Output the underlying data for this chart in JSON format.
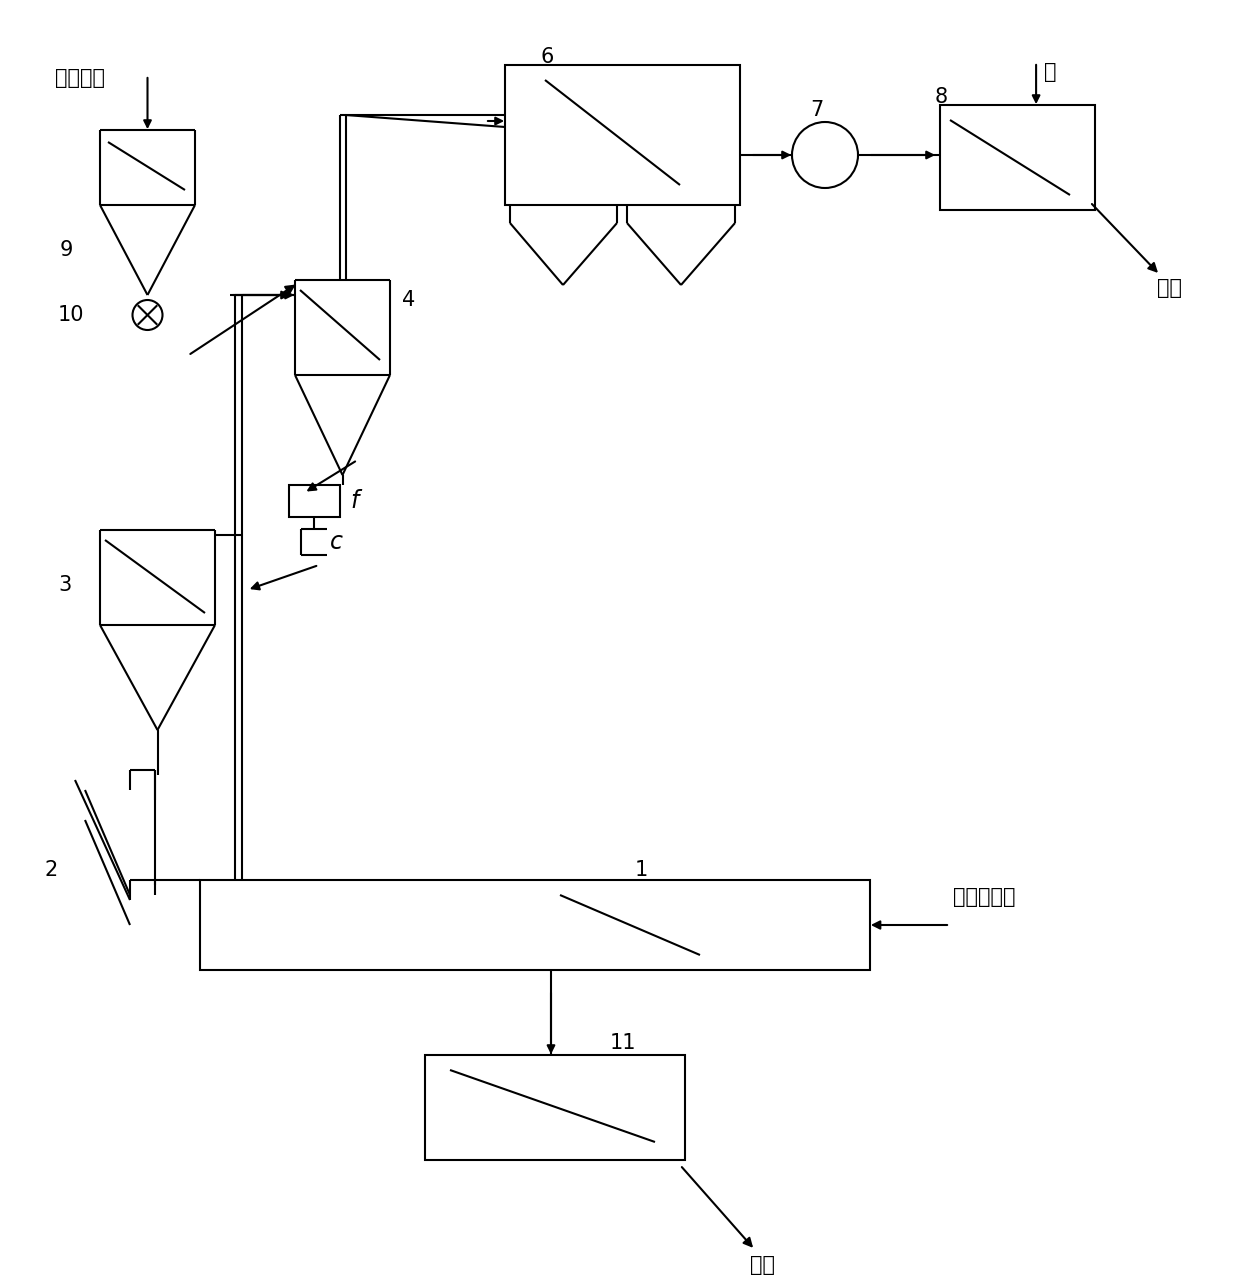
{
  "background_color": "#ffffff",
  "line_color": "#000000",
  "text_color": "#000000",
  "labels": {
    "title_input": "石膏生料",
    "water": "水",
    "sulfuric_acid": "硫酸",
    "fuel_air": "燃料、空气",
    "cement": "水泥",
    "num1": "1",
    "num2": "2",
    "num3": "3",
    "num4": "4",
    "num6": "6",
    "num7": "7",
    "num8": "8",
    "num9": "9",
    "num10": "10",
    "num11": "11",
    "label_f": "f",
    "label_c": "c"
  },
  "font_size": 15
}
